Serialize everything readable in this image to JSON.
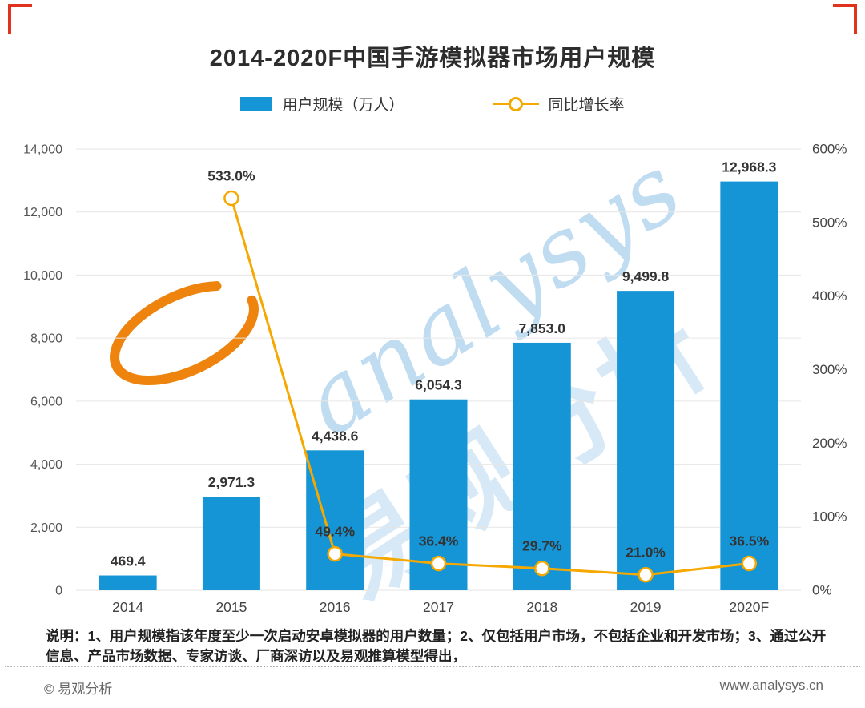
{
  "title": "2014-2020F中国手游模拟器市场用户规模",
  "legend": {
    "bar_label": "用户规模（万人）",
    "line_label": "同比增长率"
  },
  "colors": {
    "bar": "#1595D6",
    "line": "#F5A800",
    "grid": "#e6e6e6",
    "corner_red": "#E0321C",
    "watermark_blue": "rgba(141,191,229,0.55)",
    "watermark_orange": "#ED7D00"
  },
  "chart_data": {
    "type": "bar+line",
    "title": "2014-2020F中国手游模拟器市场用户规模",
    "categories": [
      "2014",
      "2015",
      "2016",
      "2017",
      "2018",
      "2019",
      "2020F"
    ],
    "series": [
      {
        "name": "用户规模（万人）",
        "type": "bar",
        "axis": "left",
        "values": [
          469.4,
          2971.3,
          4438.6,
          6054.3,
          7853.0,
          9499.8,
          12968.3
        ],
        "labels": [
          "469.4",
          "2,971.3",
          "4,438.6",
          "6,054.3",
          "7,853.0",
          "9,499.8",
          "12,968.3"
        ]
      },
      {
        "name": "同比增长率",
        "type": "line",
        "axis": "right",
        "values": [
          null,
          533.0,
          49.4,
          36.4,
          29.7,
          21.0,
          36.5
        ],
        "labels": [
          "",
          "533.0%",
          "49.4%",
          "36.4%",
          "29.7%",
          "21.0%",
          "36.5%"
        ]
      }
    ],
    "left_axis": {
      "min": 0,
      "max": 14000,
      "step": 2000,
      "ticks": [
        "0",
        "2,000",
        "4,000",
        "6,000",
        "8,000",
        "10,000",
        "12,000",
        "14,000"
      ]
    },
    "right_axis": {
      "min": 0,
      "max": 600,
      "step": 100,
      "ticks": [
        "0%",
        "100%",
        "200%",
        "300%",
        "400%",
        "500%",
        "600%"
      ]
    },
    "grid": true,
    "legend_position": "top"
  },
  "note": "说明：1、用户规模指该年度至少一次启动安卓模拟器的用户数量；2、仅包括用户市场，不包括企业和开发市场；3、通过公开信息、产品市场数据、专家访谈、厂商深访以及易观推算模型得出，",
  "footer": {
    "left": "© 易观分析",
    "right": "www.analysys.cn"
  },
  "watermark": {
    "text": "analysys",
    "cn_text": "易观分析"
  }
}
